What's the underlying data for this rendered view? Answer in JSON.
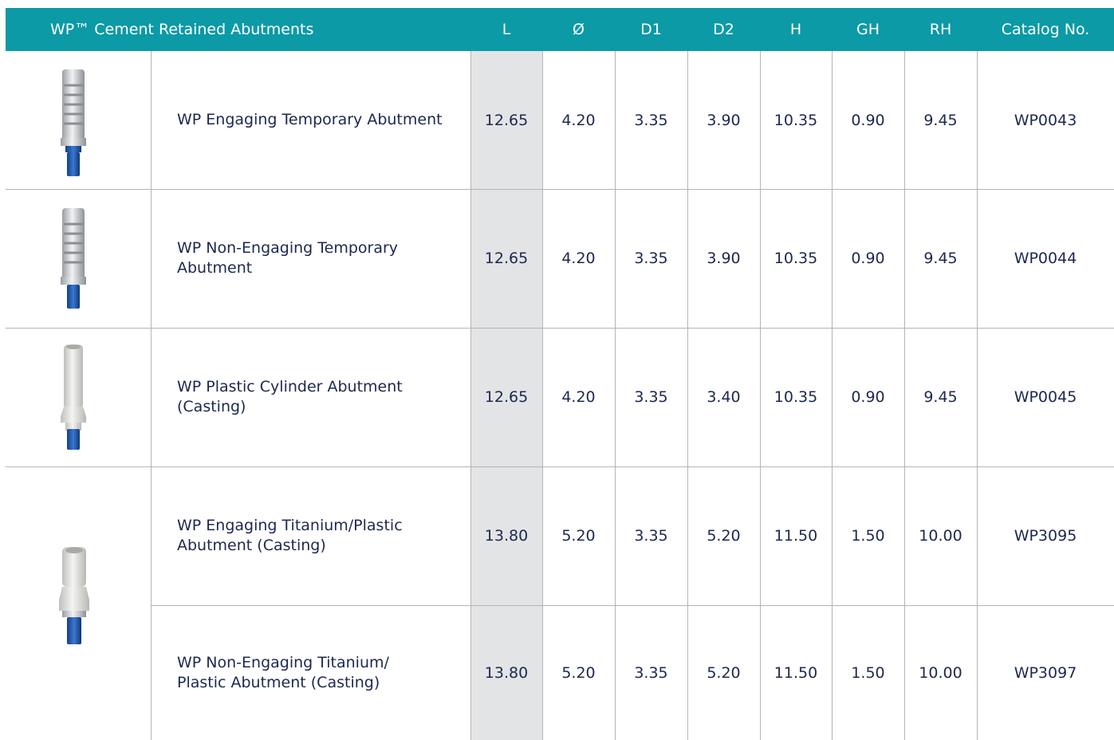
{
  "header": {
    "title": "WP™ Cement Retained Abutments",
    "columns": [
      "L",
      "Ø",
      "D1",
      "D2",
      "H",
      "GH",
      "RH",
      "Catalog No."
    ]
  },
  "rows": [
    {
      "name": [
        "WP Engaging Temporary Abutment"
      ],
      "values": [
        "12.65",
        "4.20",
        "3.35",
        "3.90",
        "10.35",
        "0.90",
        "9.45"
      ],
      "catalog": "WP0043"
    },
    {
      "name": [
        "WP Non-Engaging Temporary",
        "Abutment"
      ],
      "values": [
        "12.65",
        "4.20",
        "3.35",
        "3.90",
        "10.35",
        "0.90",
        "9.45"
      ],
      "catalog": "WP0044"
    },
    {
      "name": [
        "WP Plastic Cylinder Abutment",
        "(Casting)"
      ],
      "values": [
        "12.65",
        "4.20",
        "3.35",
        "3.40",
        "10.35",
        "0.90",
        "9.45"
      ],
      "catalog": "WP0045"
    },
    {
      "name": [
        "WP Engaging Titanium/Plastic",
        "Abutment (Casting)"
      ],
      "values": [
        "13.80",
        "5.20",
        "3.35",
        "5.20",
        "11.50",
        "1.50",
        "10.00"
      ],
      "catalog": "WP3095"
    },
    {
      "name": [
        "WP Non-Engaging Titanium/",
        "Plastic Abutment (Casting)"
      ],
      "values": [
        "13.80",
        "5.20",
        "3.35",
        "5.20",
        "11.50",
        "1.50",
        "10.00"
      ],
      "catalog": "WP3097"
    }
  ]
}
